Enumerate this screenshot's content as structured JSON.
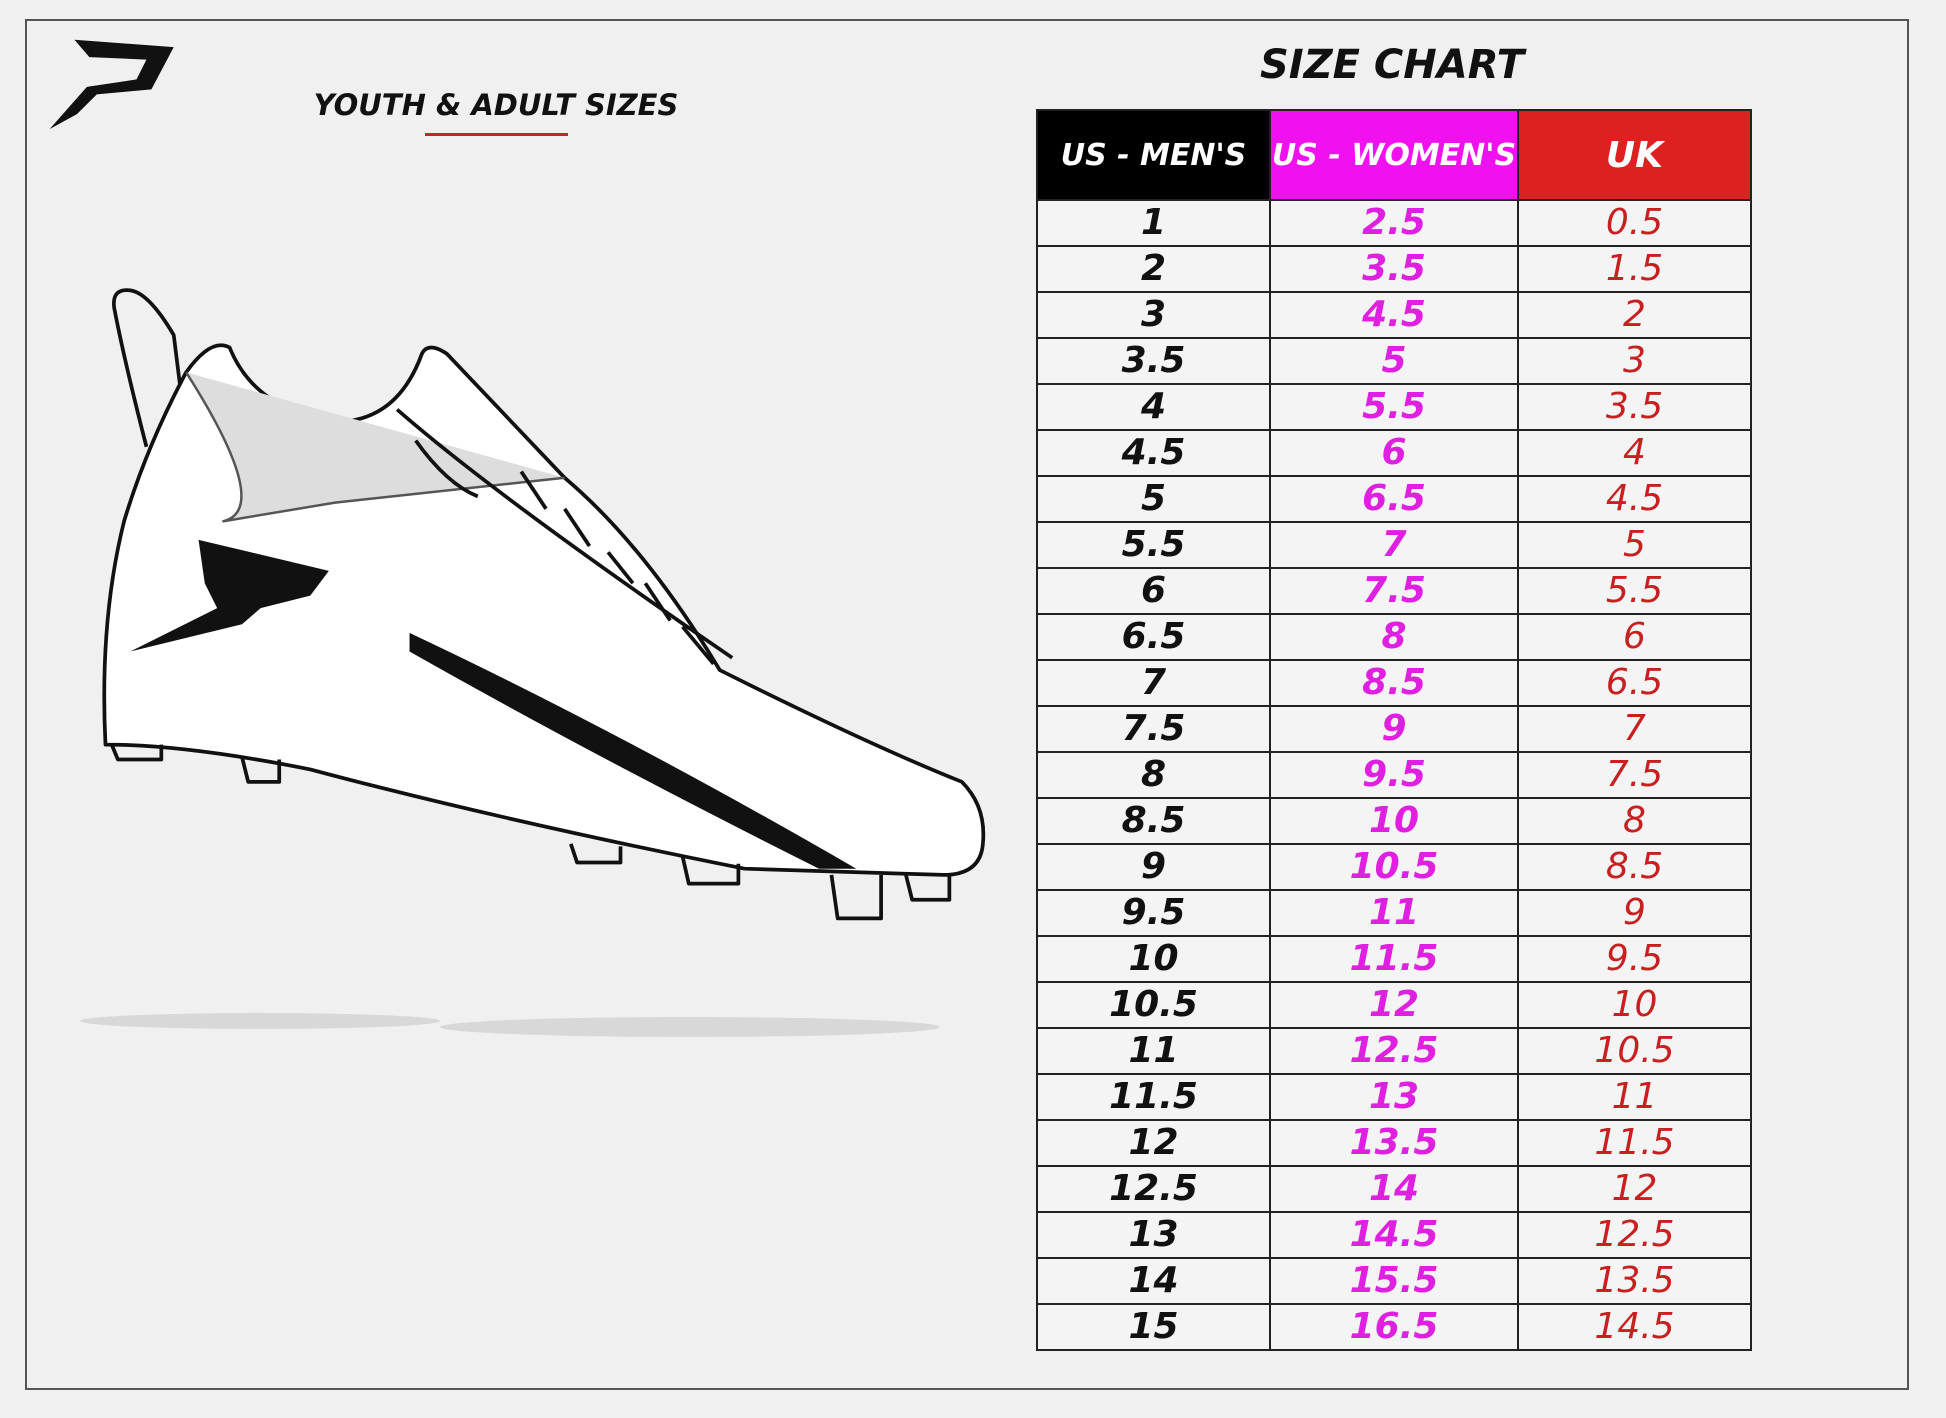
{
  "header": {
    "title": "SIZE CHART",
    "subtitle": "YOUTH & ADULT SIZES"
  },
  "table": {
    "columns": [
      "US - MEN'S",
      "US - WOMEN'S",
      "UK"
    ],
    "rows": [
      [
        "1",
        "2.5",
        "0.5"
      ],
      [
        "2",
        "3.5",
        "1.5"
      ],
      [
        "3",
        "4.5",
        "2"
      ],
      [
        "3.5",
        "5",
        "3"
      ],
      [
        "4",
        "5.5",
        "3.5"
      ],
      [
        "4.5",
        "6",
        "4"
      ],
      [
        "5",
        "6.5",
        "4.5"
      ],
      [
        "5.5",
        "7",
        "5"
      ],
      [
        "6",
        "7.5",
        "5.5"
      ],
      [
        "6.5",
        "8",
        "6"
      ],
      [
        "7",
        "8.5",
        "6.5"
      ],
      [
        "7.5",
        "9",
        "7"
      ],
      [
        "8",
        "9.5",
        "7.5"
      ],
      [
        "8.5",
        "10",
        "8"
      ],
      [
        "9",
        "10.5",
        "8.5"
      ],
      [
        "9.5",
        "11",
        "9"
      ],
      [
        "10",
        "11.5",
        "9.5"
      ],
      [
        "10.5",
        "12",
        "10"
      ],
      [
        "11",
        "12.5",
        "10.5"
      ],
      [
        "11.5",
        "13",
        "11"
      ],
      [
        "12",
        "13.5",
        "11.5"
      ],
      [
        "12.5",
        "14",
        "12"
      ],
      [
        "13",
        "14.5",
        "12.5"
      ],
      [
        "14",
        "15.5",
        "13.5"
      ],
      [
        "15",
        "16.5",
        "14.5"
      ]
    ]
  }
}
